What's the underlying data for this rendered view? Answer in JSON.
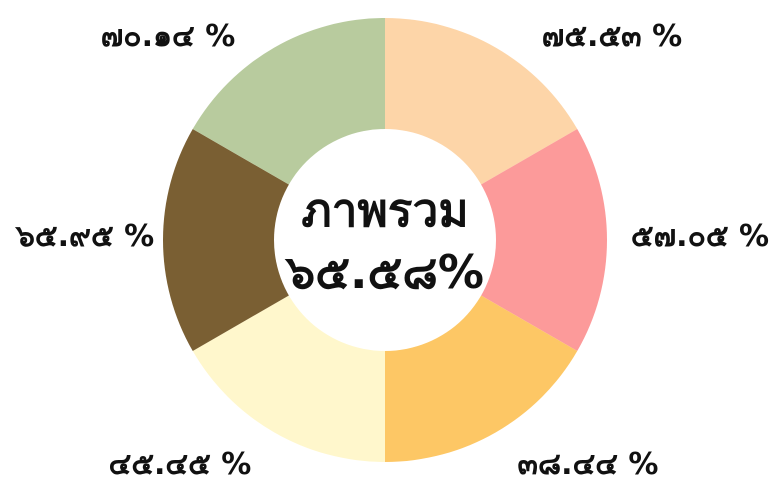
{
  "chart_data": {
    "type": "pie",
    "style": "donut",
    "categories": [
      "",
      "",
      "",
      "",
      "",
      ""
    ],
    "values": [
      1,
      1,
      1,
      1,
      1,
      1
    ],
    "value_labels": [
      "๗๕.๕๓ %",
      "๕๗.๐๕ %",
      "๓๘.๔๔ %",
      "๔๕.๔๕ %",
      "๖๕.๙๕ %",
      "๗๐.๑๔ %"
    ],
    "colors": [
      "#FDD5A8",
      "#FC9A9A",
      "#FDC765",
      "#FFF7CC",
      "#7A5F33",
      "#B8CB9E"
    ],
    "center_title": "ภาพรวม",
    "center_value": "๖๕.๕๘%",
    "title": "",
    "legend": "none"
  }
}
